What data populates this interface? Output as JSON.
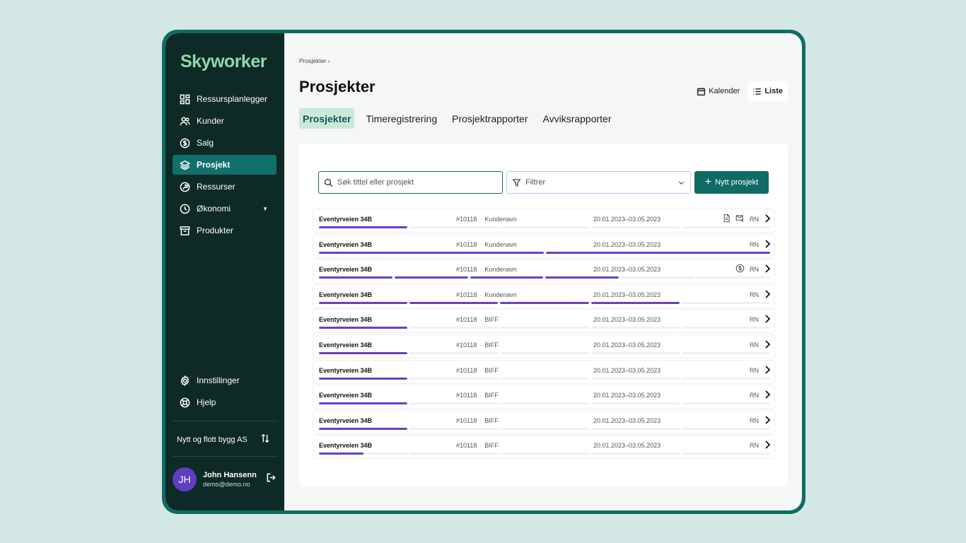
{
  "sidebar": {
    "logo": "Skyworker",
    "items": [
      {
        "label": "Ressursplanlegger",
        "icon": "grid-icon"
      },
      {
        "label": "Kunder",
        "icon": "users-icon"
      },
      {
        "label": "Salg",
        "icon": "dollar-icon"
      },
      {
        "label": "Prosjekt",
        "icon": "layers-icon",
        "active": true
      },
      {
        "label": "Ressurser",
        "icon": "wrench-icon"
      },
      {
        "label": "Økonomi",
        "icon": "clock-icon",
        "dropdown": true
      },
      {
        "label": "Produkter",
        "icon": "archive-icon"
      }
    ],
    "bottom_items": [
      {
        "label": "Innstillinger",
        "icon": "gear-icon"
      },
      {
        "label": "Hjelp",
        "icon": "lifebuoy-icon"
      }
    ],
    "company": "Nytt og flott bygg AS",
    "user": {
      "initials": "JH",
      "name": "John Hansenn",
      "email": "demo@demo.no"
    }
  },
  "main": {
    "breadcrumb": "Prosjekter",
    "title": "Prosjekter",
    "view_calendar": "Kalender",
    "view_list": "Liste",
    "tabs": [
      "Prosjekter",
      "Timeregistrering",
      "Prosjektrapporter",
      "Avviksrapporter"
    ],
    "search_placeholder": "Søk tittel eller prosjekt",
    "filter_label": "Filtrer",
    "new_button": "Nytt prosjekt",
    "rows": [
      {
        "title": "Eventyrveien 34B",
        "number": "#10118",
        "customer": "Kundenavn",
        "dates": "20.01.2023–03.05.2023",
        "initials": "RN",
        "icons": [
          "document-icon",
          "mail-icon"
        ],
        "progress": [
          1,
          0,
          0,
          0,
          0
        ]
      },
      {
        "title": "Eventyrveien 34B",
        "number": "#10118",
        "customer": "Kundenavn",
        "dates": "20.01.2023–03.05.2023",
        "initials": "RN",
        "icons": [],
        "progress": [
          1,
          1
        ]
      },
      {
        "title": "Eventyrveien 34B",
        "number": "#10118",
        "customer": "Kundenavn",
        "dates": "20.01.2023–03.05.2023",
        "initials": "RN",
        "icons": [
          "dollar-icon"
        ],
        "progress": [
          1,
          1,
          1,
          1,
          0,
          0
        ]
      },
      {
        "title": "Eventyrveien 34B",
        "number": "#10118",
        "customer": "Kundenavn",
        "dates": "20.01.2023–03.05.2023",
        "initials": "RN",
        "icons": [],
        "progress": [
          1,
          1,
          1,
          1,
          0
        ]
      },
      {
        "title": "Eventyrveien 34B",
        "number": "#10118",
        "customer": "BIFF",
        "dates": "20.01.2023–03.05.2023",
        "initials": "RN",
        "icons": [],
        "progress": [
          1,
          0,
          0,
          0,
          0
        ]
      },
      {
        "title": "Eventyrveien 34B",
        "number": "#10118",
        "customer": "BIFF",
        "dates": "20.01.2023–03.05.2023",
        "initials": "RN",
        "icons": [],
        "progress": [
          1,
          0,
          0,
          0,
          0
        ]
      },
      {
        "title": "Eventyrveien 34B",
        "number": "#10118",
        "customer": "BIFF",
        "dates": "20.01.2023–03.05.2023",
        "initials": "RN",
        "icons": [],
        "progress": [
          1,
          0,
          0,
          0,
          0
        ]
      },
      {
        "title": "Eventyrveien 34B",
        "number": "#10118",
        "customer": "BIFF",
        "dates": "20.01.2023–03.05.2023",
        "initials": "RN",
        "icons": [],
        "progress": [
          1,
          0,
          0,
          0,
          0
        ]
      },
      {
        "title": "Eventyrveien 34B",
        "number": "#10118",
        "customer": "BIFF",
        "dates": "20.01.2023–03.05.2023",
        "initials": "RN",
        "icons": [],
        "progress": [
          1,
          0,
          0,
          0,
          0
        ]
      },
      {
        "title": "Eventyrveien 34B",
        "number": "#10118",
        "customer": "BIFF",
        "dates": "20.01.2023–03.05.2023",
        "initials": "RN",
        "icons": [],
        "progress": [
          0.5,
          0,
          0,
          0,
          0
        ]
      }
    ]
  },
  "colors": {
    "accent": "#0f6b63",
    "sidebar": "#0d2a27",
    "progress": "#6a3fc1",
    "tab_active_bg": "#cbe9db"
  }
}
